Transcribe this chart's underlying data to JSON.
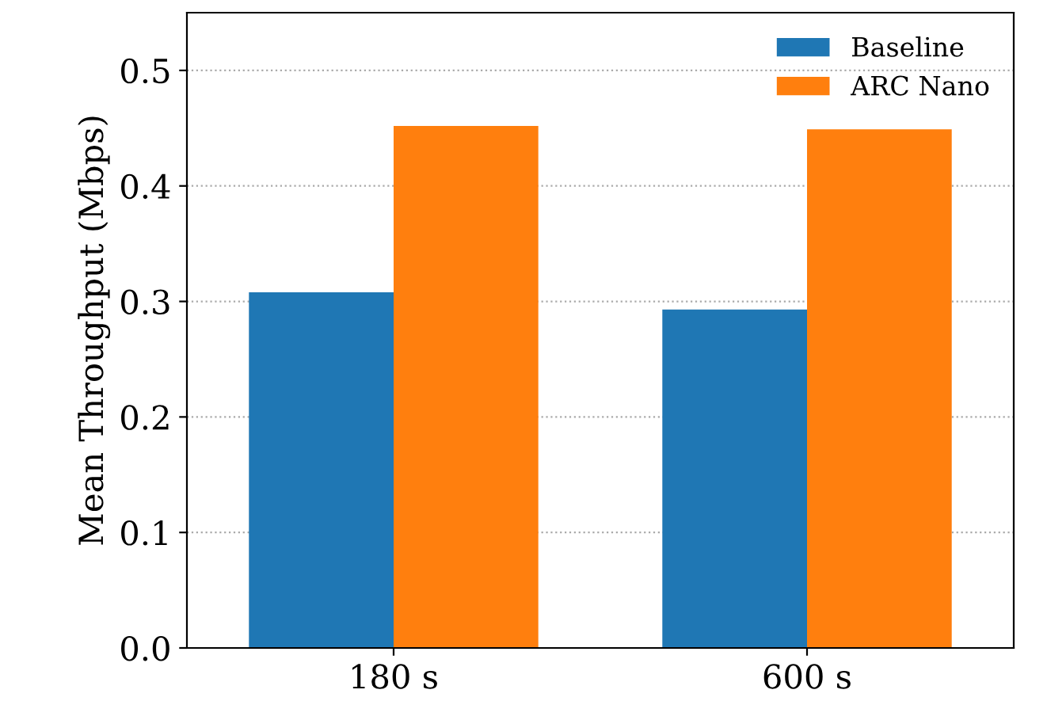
{
  "chart_data": {
    "type": "bar",
    "ylabel": "Mean Throughput (Mbps)",
    "categories": [
      "180 s",
      "600 s"
    ],
    "series": [
      {
        "name": "Baseline",
        "color": "#1f77b4",
        "values": [
          0.308,
          0.293
        ]
      },
      {
        "name": "ARC Nano",
        "color": "#ff7f0e",
        "values": [
          0.452,
          0.449
        ]
      }
    ],
    "ylim": [
      0,
      0.55
    ],
    "yticks": [
      {
        "value": 0,
        "label": "0.0"
      },
      0.1,
      0.2,
      0.3,
      0.4,
      0.5
    ],
    "grid": "y",
    "legend": "top right"
  }
}
